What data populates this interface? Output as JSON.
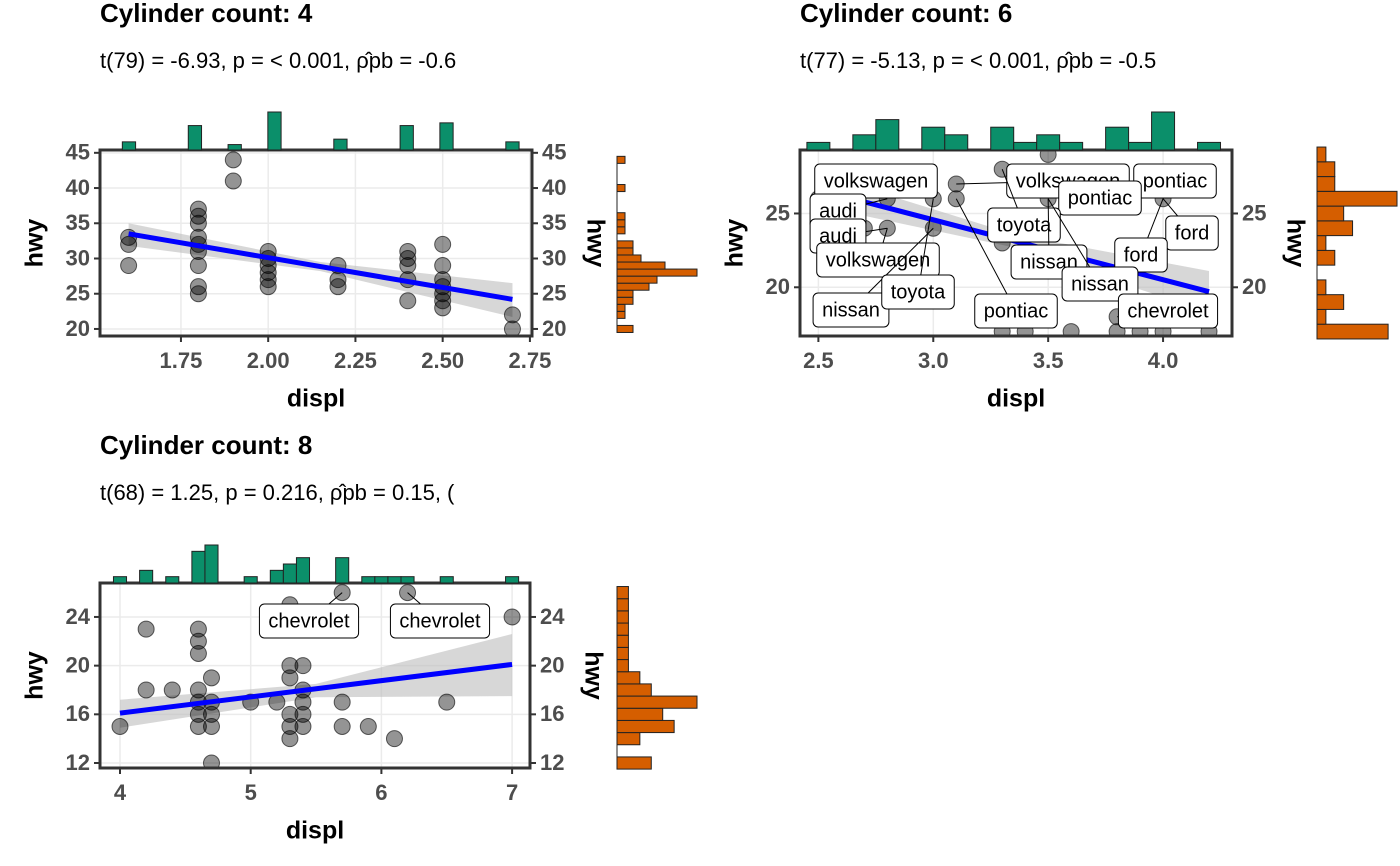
{
  "chart_data": [
    {
      "type": "scatter",
      "title": "Cylinder count: 4",
      "subtitle": "t(79) = -6.93, p = < 0.001, ρ̂pb = -0.6",
      "xlabel": "displ",
      "ylabel": "hwy",
      "x": [
        1.6,
        1.6,
        1.6,
        1.8,
        1.8,
        1.8,
        1.8,
        1.8,
        1.8,
        1.8,
        1.8,
        1.8,
        1.9,
        1.9,
        2.0,
        2.0,
        2.0,
        2.0,
        2.0,
        2.0,
        2.2,
        2.2,
        2.2,
        2.4,
        2.4,
        2.4,
        2.4,
        2.4,
        2.5,
        2.5,
        2.5,
        2.5,
        2.5,
        2.5,
        2.5,
        2.7,
        2.7
      ],
      "y": [
        32,
        33,
        29,
        29,
        26,
        25,
        33,
        35,
        36,
        37,
        31,
        32,
        44,
        41,
        26,
        27,
        28,
        29,
        30,
        31,
        27,
        29,
        26,
        24,
        27,
        29,
        30,
        31,
        23,
        24,
        25,
        26,
        27,
        29,
        32,
        20,
        22
      ],
      "xlim": [
        1.518,
        2.756
      ],
      "ylim": [
        19.0,
        45.4
      ],
      "xticks": [
        1.75,
        {
          "value": 2,
          "label": "2.00"
        },
        2.25,
        {
          "value": 2.5,
          "label": "2.50"
        },
        2.75
      ],
      "yticks": [
        20,
        25,
        30,
        35,
        40,
        45
      ],
      "grid": true,
      "point_color": "#000000",
      "fit": {
        "x": [
          1.6,
          2.7
        ],
        "y": [
          33.5,
          24.2
        ],
        "color": "#0000ff"
      },
      "band": {
        "x": [
          1.6,
          2.15,
          2.7
        ],
        "lower": [
          31.8,
          28.2,
          21.7
        ],
        "upper": [
          35,
          29.5,
          26.5
        ]
      },
      "labels": [],
      "x_hist": {
        "color": "#0b8f6a",
        "bins": [
          1.582,
          1.62,
          1.658,
          1.695,
          1.733,
          1.771,
          1.809,
          1.847,
          1.885,
          1.923,
          1.961,
          1.999,
          2.037,
          2.075,
          2.113,
          2.15,
          2.188,
          2.226,
          2.264,
          2.302,
          2.34,
          2.378,
          2.416,
          2.454,
          2.492,
          2.53,
          2.567,
          2.605,
          2.643,
          2.681,
          2.719
        ],
        "counts": [
          3,
          0,
          0,
          0,
          0,
          9,
          0,
          0,
          2,
          0,
          0,
          14,
          0,
          0,
          0,
          0,
          4,
          0,
          0,
          0,
          0,
          9,
          0,
          0,
          10,
          0,
          0,
          0,
          0,
          3
        ]
      },
      "y_hist": {
        "color": "#d55e00",
        "bins": [
          19.5,
          20.5,
          21.5,
          22.5,
          23.5,
          24.5,
          25.5,
          26.5,
          27.5,
          28.5,
          29.5,
          30.5,
          31.5,
          32.5,
          33.5,
          34.5,
          35.5,
          36.5,
          37.5,
          38.5,
          39.5,
          40.5,
          41.5,
          42.5,
          43.5,
          44.5
        ],
        "counts": [
          2,
          0,
          1,
          1,
          2,
          2,
          4,
          5,
          10,
          6,
          3,
          2,
          2,
          0,
          1,
          1,
          1,
          0,
          0,
          0,
          1,
          0,
          0,
          0,
          1
        ]
      }
    },
    {
      "type": "scatter",
      "title": "Cylinder count: 6",
      "subtitle": "t(77) = -5.13, p = < 0.001, ρ̂pb = -0.5",
      "xlabel": "displ",
      "ylabel": "hwy",
      "x": [
        2.5,
        2.5,
        2.7,
        2.7,
        2.8,
        2.8,
        3.0,
        3.0,
        3.1,
        3.1,
        3.3,
        3.3,
        3.3,
        3.4,
        3.5,
        3.5,
        3.6,
        3.8,
        3.8,
        3.8,
        3.9,
        4.0,
        4.0,
        4.0,
        4.2,
        4.2
      ],
      "y": [
        26,
        25,
        27,
        24,
        24,
        26,
        26,
        24,
        26,
        27,
        17,
        23,
        28,
        17,
        26,
        29,
        17,
        17,
        18,
        26,
        17,
        17,
        19,
        26,
        17,
        19
      ],
      "xlim": [
        2.42,
        4.3
      ],
      "ylim": [
        16.7,
        29.3
      ],
      "xticks": [
        2.5,
        {
          "value": 3,
          "label": "3.0"
        },
        3.5,
        {
          "value": 4,
          "label": "4.0"
        }
      ],
      "yticks": [
        20,
        25
      ],
      "grid": true,
      "point_color": "#000000",
      "fit": {
        "x": [
          2.5,
          4.2
        ],
        "y": [
          26.6,
          19.7
        ],
        "color": "#0000ff"
      },
      "band": {
        "x": [
          2.5,
          3.35,
          4.2
        ],
        "lower": [
          25.5,
          22.7,
          18.3
        ],
        "upper": [
          27.7,
          23.6,
          21.1
        ]
      },
      "labels": [
        {
          "text": "pontiac",
          "x": 3.8,
          "y": 26
        },
        {
          "text": "volkswagen",
          "x": 2.7,
          "y": 27
        },
        {
          "text": "audi",
          "x": 2.8,
          "y": 26
        },
        {
          "text": "audi",
          "x": 2.8,
          "y": 24
        },
        {
          "text": "volkswagen",
          "x": 2.8,
          "y": 24
        },
        {
          "text": "nissan",
          "x": 3.0,
          "y": 24
        },
        {
          "text": "toyota",
          "x": 3.0,
          "y": 26
        },
        {
          "text": "volkswagen",
          "x": 3.1,
          "y": 27
        },
        {
          "text": "pontiac",
          "x": 3.8,
          "y": 26
        },
        {
          "text": "toyota",
          "x": 3.3,
          "y": 28
        },
        {
          "text": "nissan",
          "x": 3.5,
          "y": 26
        },
        {
          "text": "ford",
          "x": 4.0,
          "y": 26
        },
        {
          "text": "ford",
          "x": 4.0,
          "y": 26
        },
        {
          "text": "nissan",
          "x": 3.5,
          "y": 26
        },
        {
          "text": "pontiac",
          "x": 3.1,
          "y": 26
        },
        {
          "text": "chevrolet",
          "x": 3.8,
          "y": 18
        }
      ],
      "x_hist": {
        "color": "#0b8f6a",
        "bins": [
          2.45,
          2.55,
          2.65,
          2.75,
          2.85,
          2.95,
          3.05,
          3.15,
          3.25,
          3.35,
          3.45,
          3.55,
          3.65,
          3.75,
          3.85,
          3.95,
          4.05,
          4.15,
          4.25
        ],
        "counts": [
          1,
          0,
          2,
          4,
          0,
          3,
          2,
          0,
          3,
          1,
          2,
          1,
          0,
          3,
          1,
          5,
          0,
          1
        ]
      },
      "y_hist": {
        "color": "#d55e00",
        "bins": [
          16.5,
          17.5,
          18.5,
          19.5,
          20.5,
          21.5,
          22.5,
          23.5,
          24.5,
          25.5,
          26.5,
          27.5,
          28.5,
          29.5
        ],
        "counts": [
          8,
          1,
          3,
          1,
          0,
          2,
          1,
          4,
          3,
          9,
          2,
          2,
          1
        ]
      }
    },
    {
      "type": "scatter",
      "title": "Cylinder count: 8",
      "subtitle": "t(68) = 1.25, p = 0.216, ρ̂pb = 0.15, (",
      "xlabel": "displ",
      "ylabel": "hwy",
      "x": [
        4.0,
        4.2,
        4.2,
        4.4,
        4.6,
        4.6,
        4.6,
        4.6,
        4.6,
        4.6,
        4.6,
        4.7,
        4.7,
        4.7,
        4.7,
        4.7,
        5.0,
        5.2,
        5.3,
        5.3,
        5.3,
        5.3,
        5.3,
        5.3,
        5.4,
        5.4,
        5.4,
        5.4,
        5.4,
        5.7,
        5.7,
        5.7,
        5.9,
        6.1,
        6.2,
        6.5,
        7.0
      ],
      "y": [
        15,
        23,
        18,
        18,
        23,
        22,
        21,
        17,
        16,
        15,
        18,
        17,
        16,
        15,
        19,
        12,
        17,
        17,
        20,
        19,
        16,
        15,
        14,
        25,
        20,
        18,
        17,
        15,
        16,
        17,
        15,
        26,
        15,
        14,
        26,
        17,
        24
      ],
      "xlim": [
        3.847,
        7.137
      ],
      "ylim": [
        11.59,
        26.79
      ],
      "xticks": [
        4,
        5,
        6,
        7
      ],
      "yticks": [
        12,
        16,
        20,
        24
      ],
      "grid": true,
      "point_color": "#000000",
      "fit": {
        "x": [
          4,
          7
        ],
        "y": [
          16.1,
          20.1
        ],
        "color": "#0000ff"
      },
      "band": {
        "x": [
          4,
          5.5,
          7
        ],
        "lower": [
          14.9,
          17.4,
          17.5
        ],
        "upper": [
          17.2,
          18.5,
          22.6
        ]
      },
      "labels": [
        {
          "text": "chevrolet",
          "x": 5.7,
          "y": 26
        },
        {
          "text": "chevrolet",
          "x": 6.2,
          "y": 26
        }
      ],
      "x_hist": {
        "color": "#0b8f6a",
        "bins": [
          3.95,
          4.05,
          4.15,
          4.25,
          4.35,
          4.45,
          4.55,
          4.65,
          4.75,
          4.85,
          4.95,
          5.05,
          5.15,
          5.25,
          5.35,
          5.45,
          5.55,
          5.65,
          5.75,
          5.85,
          5.95,
          6.05,
          6.15,
          6.25,
          6.35,
          6.45,
          6.55,
          6.65,
          6.75,
          6.85,
          6.95,
          7.05
        ],
        "counts": [
          1,
          0,
          2,
          0,
          1,
          0,
          5,
          6,
          0,
          0,
          1,
          0,
          2,
          3,
          4,
          0,
          0,
          4,
          0,
          1,
          1,
          1,
          1,
          0,
          0,
          1,
          0,
          0,
          0,
          0,
          1
        ]
      },
      "y_hist": {
        "color": "#d55e00",
        "bins": [
          11.5,
          12.5,
          13.5,
          14.5,
          15.5,
          16.5,
          17.5,
          18.5,
          19.5,
          20.5,
          21.5,
          22.5,
          23.5,
          24.5,
          25.5,
          26.5
        ],
        "counts": [
          3,
          0,
          2,
          5,
          4,
          7,
          3,
          2,
          1,
          1,
          1,
          1,
          1,
          1,
          1
        ]
      }
    }
  ]
}
